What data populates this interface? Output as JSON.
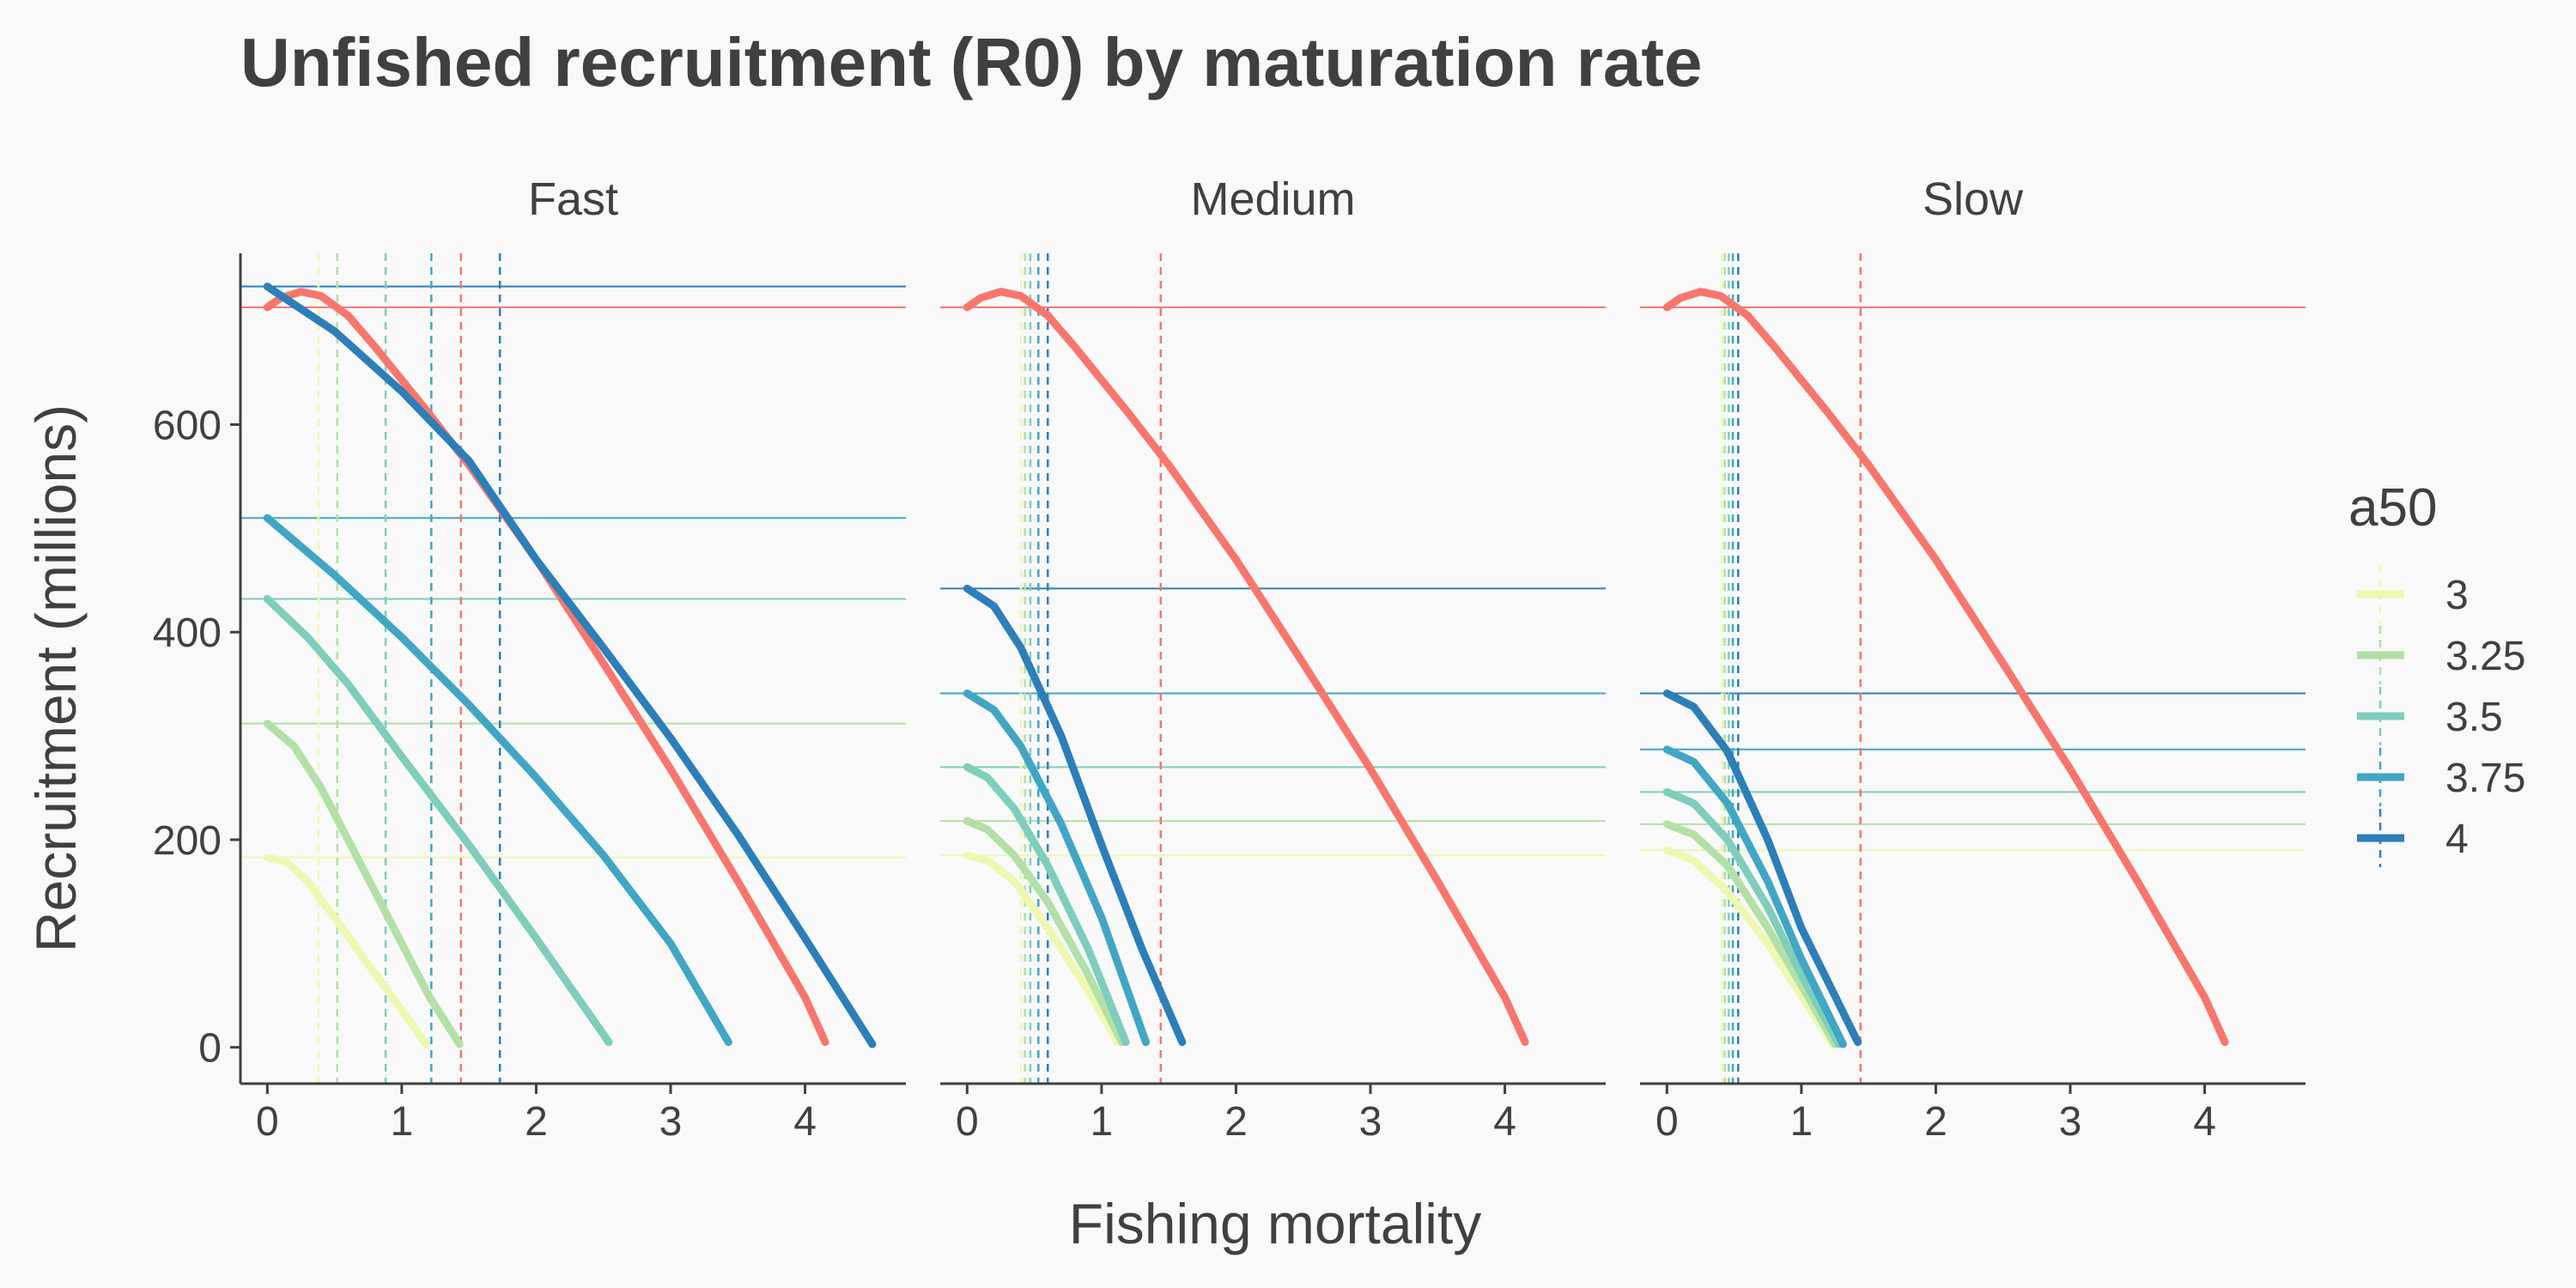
{
  "chart_data": {
    "type": "line",
    "title": "Unfished recruitment (R0) by maturation rate",
    "xlabel": "Fishing mortality",
    "ylabel": "Recruitment (millions)",
    "xlim": [
      -0.2,
      4.75
    ],
    "ylim": [
      -35,
      765
    ],
    "x_ticks": [
      0,
      1,
      2,
      3,
      4
    ],
    "y_ticks": [
      0,
      200,
      400,
      600
    ],
    "grid": false,
    "legend": {
      "title": "a50",
      "position": "right",
      "entries": [
        "3",
        "3.25",
        "3.5",
        "3.75",
        "4"
      ]
    },
    "colors": {
      "3": "#edf8b1",
      "3.25": "#b3e0a6",
      "3.5": "#7fcdbb",
      "3.75": "#41a6c4",
      "4": "#2c7fb8",
      "reference": "#f8766d"
    },
    "reference": {
      "r0": 713,
      "fmax": 1.44,
      "points": [
        [
          0,
          713
        ],
        [
          0.1,
          722
        ],
        [
          0.25,
          728
        ],
        [
          0.4,
          724
        ],
        [
          0.6,
          705
        ],
        [
          0.8,
          675
        ],
        [
          1.0,
          643
        ],
        [
          1.2,
          611
        ],
        [
          1.5,
          561
        ],
        [
          2.0,
          470
        ],
        [
          2.5,
          370
        ],
        [
          3.0,
          268
        ],
        [
          3.5,
          160
        ],
        [
          4.0,
          48
        ],
        [
          4.15,
          5
        ]
      ]
    },
    "panels": [
      {
        "name": "Fast",
        "series": [
          {
            "name": "3",
            "r0": 183,
            "fmax": 0.38,
            "points": [
              [
                0,
                183
              ],
              [
                0.15,
                178
              ],
              [
                0.3,
                160
              ],
              [
                0.5,
                125
              ],
              [
                0.75,
                80
              ],
              [
                1.0,
                36
              ],
              [
                1.18,
                3
              ]
            ]
          },
          {
            "name": "3.25",
            "r0": 312,
            "fmax": 0.52,
            "points": [
              [
                0,
                312
              ],
              [
                0.2,
                290
              ],
              [
                0.4,
                250
              ],
              [
                0.6,
                200
              ],
              [
                0.8,
                150
              ],
              [
                1.0,
                100
              ],
              [
                1.2,
                50
              ],
              [
                1.43,
                3
              ]
            ]
          },
          {
            "name": "3.5",
            "r0": 432,
            "fmax": 0.88,
            "points": [
              [
                0,
                432
              ],
              [
                0.3,
                395
              ],
              [
                0.6,
                350
              ],
              [
                1.0,
                280
              ],
              [
                1.5,
                195
              ],
              [
                2.0,
                105
              ],
              [
                2.54,
                5
              ]
            ]
          },
          {
            "name": "3.75",
            "r0": 510,
            "fmax": 1.22,
            "points": [
              [
                0,
                510
              ],
              [
                0.5,
                455
              ],
              [
                1.0,
                395
              ],
              [
                1.5,
                330
              ],
              [
                2.0,
                260
              ],
              [
                2.5,
                185
              ],
              [
                3.0,
                100
              ],
              [
                3.43,
                5
              ]
            ]
          },
          {
            "name": "4",
            "r0": 733,
            "fmax": 1.73,
            "points": [
              [
                0,
                733
              ],
              [
                0.5,
                690
              ],
              [
                1.0,
                632
              ],
              [
                1.5,
                565
              ],
              [
                2.0,
                470
              ],
              [
                2.5,
                385
              ],
              [
                3.0,
                298
              ],
              [
                3.5,
                205
              ],
              [
                4.0,
                105
              ],
              [
                4.5,
                3
              ]
            ]
          }
        ]
      },
      {
        "name": "Medium",
        "series": [
          {
            "name": "3",
            "r0": 185,
            "fmax": 0.4,
            "points": [
              [
                0,
                185
              ],
              [
                0.15,
                180
              ],
              [
                0.35,
                160
              ],
              [
                0.6,
                115
              ],
              [
                0.9,
                55
              ],
              [
                1.12,
                5
              ]
            ]
          },
          {
            "name": "3.25",
            "r0": 218,
            "fmax": 0.43,
            "points": [
              [
                0,
                218
              ],
              [
                0.15,
                210
              ],
              [
                0.35,
                185
              ],
              [
                0.6,
                140
              ],
              [
                0.9,
                70
              ],
              [
                1.15,
                5
              ]
            ]
          },
          {
            "name": "3.5",
            "r0": 270,
            "fmax": 0.47,
            "points": [
              [
                0,
                270
              ],
              [
                0.15,
                260
              ],
              [
                0.35,
                230
              ],
              [
                0.6,
                175
              ],
              [
                0.9,
                95
              ],
              [
                1.18,
                5
              ]
            ]
          },
          {
            "name": "3.75",
            "r0": 341,
            "fmax": 0.53,
            "points": [
              [
                0,
                341
              ],
              [
                0.2,
                325
              ],
              [
                0.4,
                290
              ],
              [
                0.7,
                215
              ],
              [
                1.0,
                125
              ],
              [
                1.33,
                5
              ]
            ]
          },
          {
            "name": "4",
            "r0": 442,
            "fmax": 0.6,
            "points": [
              [
                0,
                442
              ],
              [
                0.2,
                425
              ],
              [
                0.4,
                385
              ],
              [
                0.7,
                300
              ],
              [
                1.0,
                195
              ],
              [
                1.3,
                95
              ],
              [
                1.6,
                5
              ]
            ]
          }
        ]
      },
      {
        "name": "Slow",
        "series": [
          {
            "name": "3",
            "r0": 190,
            "fmax": 0.41,
            "points": [
              [
                0,
                190
              ],
              [
                0.2,
                180
              ],
              [
                0.45,
                150
              ],
              [
                0.75,
                100
              ],
              [
                1.0,
                50
              ],
              [
                1.23,
                3
              ]
            ]
          },
          {
            "name": "3.25",
            "r0": 215,
            "fmax": 0.43,
            "points": [
              [
                0,
                215
              ],
              [
                0.2,
                205
              ],
              [
                0.45,
                175
              ],
              [
                0.75,
                115
              ],
              [
                1.0,
                60
              ],
              [
                1.25,
                3
              ]
            ]
          },
          {
            "name": "3.5",
            "r0": 246,
            "fmax": 0.46,
            "points": [
              [
                0,
                246
              ],
              [
                0.2,
                235
              ],
              [
                0.45,
                200
              ],
              [
                0.75,
                135
              ],
              [
                1.0,
                70
              ],
              [
                1.28,
                3
              ]
            ]
          },
          {
            "name": "3.75",
            "r0": 287,
            "fmax": 0.49,
            "points": [
              [
                0,
                287
              ],
              [
                0.2,
                275
              ],
              [
                0.45,
                235
              ],
              [
                0.75,
                160
              ],
              [
                1.0,
                85
              ],
              [
                1.31,
                3
              ]
            ]
          },
          {
            "name": "4",
            "r0": 341,
            "fmax": 0.53,
            "points": [
              [
                0,
                341
              ],
              [
                0.2,
                328
              ],
              [
                0.45,
                285
              ],
              [
                0.75,
                200
              ],
              [
                1.0,
                115
              ],
              [
                1.42,
                5
              ]
            ]
          }
        ]
      }
    ]
  }
}
